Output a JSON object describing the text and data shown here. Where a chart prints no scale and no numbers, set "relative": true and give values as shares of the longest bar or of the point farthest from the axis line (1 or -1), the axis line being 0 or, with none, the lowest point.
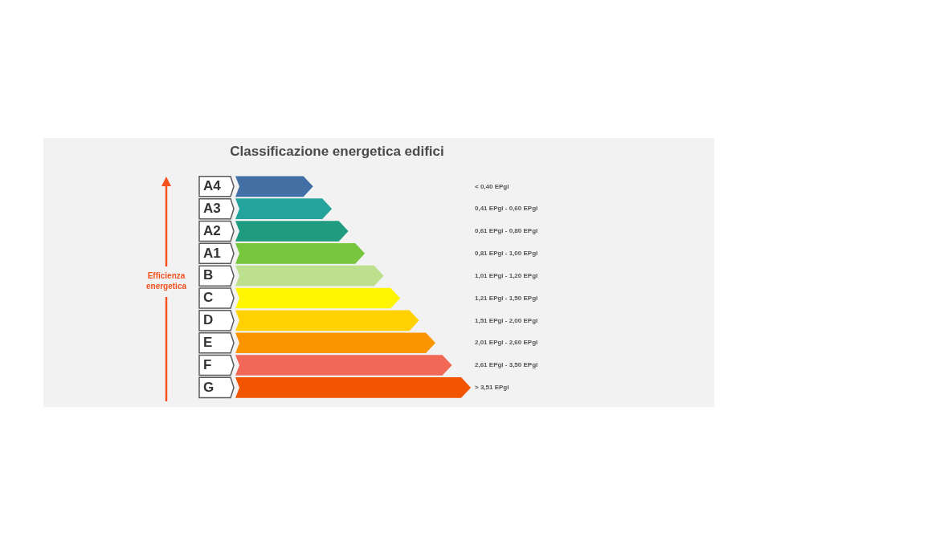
{
  "chart_data": {
    "type": "bar",
    "orientation": "horizontal",
    "relative": true,
    "title": "Classificazione energetica edifici",
    "categories": [
      "A4",
      "A3",
      "A2",
      "A1",
      "B",
      "C",
      "D",
      "E",
      "F",
      "G"
    ],
    "values": [
      0.33,
      0.41,
      0.48,
      0.55,
      0.63,
      0.7,
      0.78,
      0.85,
      0.92,
      1
    ],
    "colors": [
      "#4270a4",
      "#24a39c",
      "#1f9c80",
      "#77c63e",
      "#bce08e",
      "#fff500",
      "#ffd100",
      "#fa9500",
      "#f26857",
      "#f25500"
    ],
    "annotations": [
      "< 0,40 EPgl",
      "0,41 EPgl - 0,60 EPgl",
      "0,61 EPgl - 0,80 EPgl",
      "0,81 EPgl - 1,00 EPgl",
      "1,01 EPgl - 1,20 EPgl",
      "1,21 EPgl - 1,50 EPgl",
      "1,51 EPgl - 2,00 EPgl",
      "2,01 EPgl - 2,60 EPgl",
      "2,61 EPgl - 3,50 EPgl",
      "> 3,51 EPgl",
      "Efficienza energetica"
    ]
  }
}
